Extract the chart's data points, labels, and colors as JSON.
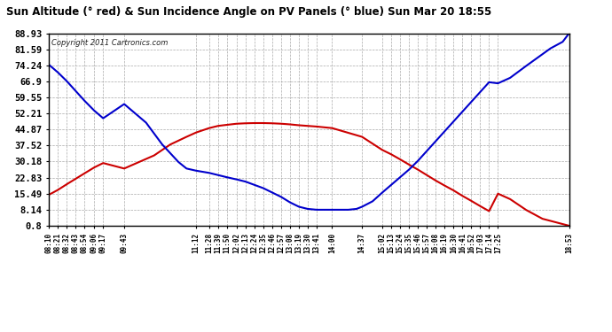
{
  "title": "Sun Altitude (° red) & Sun Incidence Angle on PV Panels (° blue) Sun Mar 20 18:55",
  "copyright": "Copyright 2011 Cartronics.com",
  "yticks": [
    0.8,
    8.14,
    15.49,
    22.83,
    30.18,
    37.52,
    44.87,
    52.21,
    59.55,
    66.9,
    74.24,
    81.59,
    88.93
  ],
  "ymin": 0.8,
  "ymax": 88.93,
  "bg_color": "#ffffff",
  "plot_bg_color": "#ffffff",
  "grid_color": "#aaaaaa",
  "red_color": "#cc0000",
  "blue_color": "#0000cc",
  "xtick_labels": [
    "08:10",
    "08:21",
    "08:32",
    "08:43",
    "08:54",
    "09:06",
    "09:17",
    "09:43",
    "11:12",
    "11:28",
    "11:39",
    "11:50",
    "12:02",
    "12:13",
    "12:24",
    "12:35",
    "12:46",
    "12:57",
    "13:08",
    "13:19",
    "13:30",
    "13:41",
    "14:00",
    "14:37",
    "15:02",
    "15:13",
    "15:24",
    "15:35",
    "15:46",
    "15:57",
    "16:08",
    "16:19",
    "16:30",
    "16:41",
    "16:52",
    "17:03",
    "17:14",
    "17:25",
    "18:53"
  ],
  "xtick_minutes": [
    490,
    501,
    512,
    523,
    534,
    546,
    557,
    583,
    672,
    688,
    699,
    710,
    722,
    733,
    744,
    755,
    766,
    777,
    788,
    799,
    810,
    821,
    840,
    877,
    902,
    913,
    924,
    935,
    946,
    957,
    968,
    979,
    990,
    1001,
    1012,
    1023,
    1034,
    1045,
    1133
  ],
  "red_curve": [
    [
      490,
      15.0
    ],
    [
      501,
      17.2
    ],
    [
      512,
      19.8
    ],
    [
      523,
      22.3
    ],
    [
      534,
      24.8
    ],
    [
      546,
      27.5
    ],
    [
      557,
      29.5
    ],
    [
      583,
      27.0
    ],
    [
      620,
      33.0
    ],
    [
      640,
      38.0
    ],
    [
      660,
      41.5
    ],
    [
      672,
      43.5
    ],
    [
      688,
      45.5
    ],
    [
      699,
      46.5
    ],
    [
      710,
      47.0
    ],
    [
      722,
      47.5
    ],
    [
      733,
      47.7
    ],
    [
      744,
      47.8
    ],
    [
      755,
      47.8
    ],
    [
      766,
      47.7
    ],
    [
      777,
      47.5
    ],
    [
      788,
      47.2
    ],
    [
      799,
      46.8
    ],
    [
      810,
      46.5
    ],
    [
      821,
      46.2
    ],
    [
      840,
      45.5
    ],
    [
      877,
      41.5
    ],
    [
      902,
      35.5
    ],
    [
      913,
      33.5
    ],
    [
      924,
      31.2
    ],
    [
      935,
      28.8
    ],
    [
      946,
      26.5
    ],
    [
      957,
      24.0
    ],
    [
      968,
      21.5
    ],
    [
      979,
      19.2
    ],
    [
      990,
      17.0
    ],
    [
      1001,
      14.5
    ],
    [
      1012,
      12.2
    ],
    [
      1023,
      9.8
    ],
    [
      1034,
      7.5
    ],
    [
      1045,
      15.5
    ],
    [
      1060,
      13.0
    ],
    [
      1080,
      8.0
    ],
    [
      1100,
      4.0
    ],
    [
      1133,
      0.8
    ]
  ],
  "blue_curve": [
    [
      490,
      74.5
    ],
    [
      501,
      71.0
    ],
    [
      512,
      67.0
    ],
    [
      523,
      62.5
    ],
    [
      534,
      58.0
    ],
    [
      546,
      53.5
    ],
    [
      557,
      50.0
    ],
    [
      583,
      56.5
    ],
    [
      610,
      48.0
    ],
    [
      630,
      38.0
    ],
    [
      650,
      30.0
    ],
    [
      660,
      27.0
    ],
    [
      672,
      26.0
    ],
    [
      688,
      25.0
    ],
    [
      699,
      24.0
    ],
    [
      710,
      23.0
    ],
    [
      722,
      22.0
    ],
    [
      733,
      21.0
    ],
    [
      744,
      19.5
    ],
    [
      755,
      18.0
    ],
    [
      766,
      16.0
    ],
    [
      777,
      14.0
    ],
    [
      788,
      11.5
    ],
    [
      799,
      9.5
    ],
    [
      810,
      8.5
    ],
    [
      821,
      8.14
    ],
    [
      830,
      8.14
    ],
    [
      840,
      8.14
    ],
    [
      850,
      8.14
    ],
    [
      860,
      8.14
    ],
    [
      870,
      8.5
    ],
    [
      877,
      9.5
    ],
    [
      890,
      12.0
    ],
    [
      902,
      16.0
    ],
    [
      913,
      19.5
    ],
    [
      924,
      23.0
    ],
    [
      935,
      26.5
    ],
    [
      946,
      30.5
    ],
    [
      957,
      35.0
    ],
    [
      968,
      39.5
    ],
    [
      979,
      44.0
    ],
    [
      990,
      48.5
    ],
    [
      1001,
      53.0
    ],
    [
      1012,
      57.5
    ],
    [
      1023,
      62.0
    ],
    [
      1034,
      66.5
    ],
    [
      1045,
      66.0
    ],
    [
      1060,
      68.5
    ],
    [
      1080,
      74.0
    ],
    [
      1110,
      82.0
    ],
    [
      1125,
      85.0
    ],
    [
      1133,
      88.93
    ]
  ]
}
